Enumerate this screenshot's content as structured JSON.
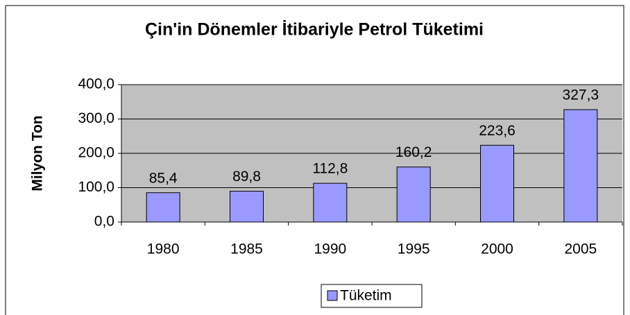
{
  "chart_data": {
    "type": "bar",
    "title": "Çin'in Dönemler İtibariyle Petrol Tüketimi",
    "y_label": "Milyon Ton",
    "categories": [
      "1980",
      "1985",
      "1990",
      "1995",
      "2000",
      "2005"
    ],
    "series": [
      {
        "name": "Tüketim",
        "color": "#9999ff",
        "values": [
          85.4,
          89.8,
          112.8,
          160.2,
          223.6,
          327.3
        ],
        "value_labels": [
          "85,4",
          "89,8",
          "112,8",
          "160,2",
          "223,6",
          "327,3"
        ]
      }
    ],
    "ylim": [
      0,
      400
    ],
    "yticks": [
      {
        "value": 0,
        "label": "0,0"
      },
      {
        "value": 100,
        "label": "100,0"
      },
      {
        "value": 200,
        "label": "200,0"
      },
      {
        "value": 300,
        "label": "300,0"
      },
      {
        "value": 400,
        "label": "400,0"
      }
    ],
    "grid": true,
    "legend": "bottom"
  }
}
